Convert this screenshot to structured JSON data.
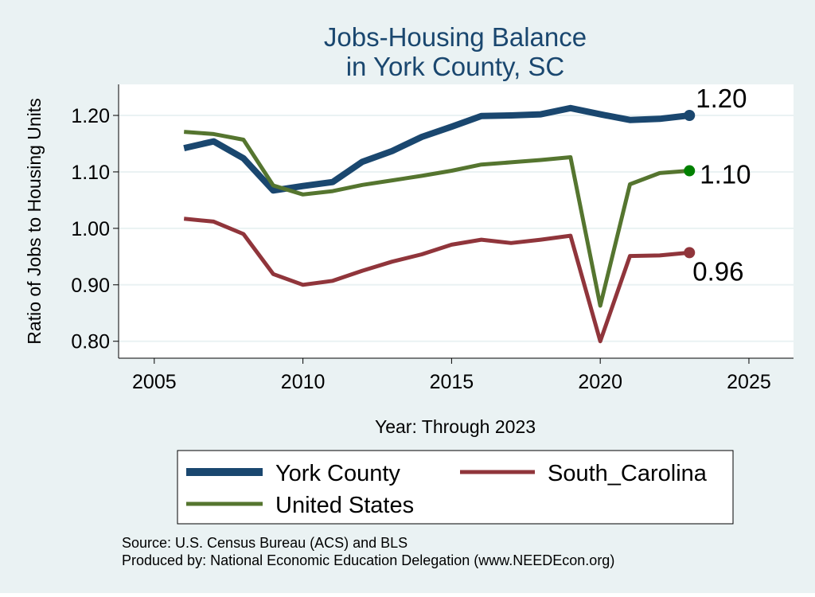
{
  "chart_data": {
    "type": "line",
    "title_lines": [
      "Jobs-Housing Balance",
      "in York County, SC"
    ],
    "xlabel": "Year: Through 2023",
    "ylabel": "Ratio of Jobs to Housing Units",
    "xlim": [
      2003.8,
      2026.5
    ],
    "ylim": [
      0.77,
      1.255
    ],
    "x_ticks": [
      2005,
      2010,
      2015,
      2020,
      2025
    ],
    "y_ticks": [
      0.8,
      0.9,
      1.0,
      1.1,
      1.2
    ],
    "y_tick_labels": [
      "0.80",
      "0.90",
      "1.00",
      "1.10",
      "1.20"
    ],
    "grid": true,
    "legend": "bottom",
    "x": [
      2006,
      2007,
      2008,
      2009,
      2010,
      2011,
      2012,
      2013,
      2014,
      2015,
      2016,
      2017,
      2018,
      2019,
      2020,
      2021,
      2022,
      2023
    ],
    "series": [
      {
        "name": "York County",
        "color": "#1a476f",
        "values": [
          1.142,
          1.154,
          1.124,
          1.067,
          1.075,
          1.082,
          1.118,
          1.137,
          1.162,
          1.18,
          1.199,
          1.2,
          1.202,
          1.213,
          1.202,
          1.192,
          1.194,
          1.2
        ],
        "end_label": "1.20",
        "end_marker_color": "#1a476f"
      },
      {
        "name": "South_Carolina",
        "color": "#90353b",
        "values": [
          1.017,
          1.012,
          0.99,
          0.919,
          0.9,
          0.907,
          0.925,
          0.941,
          0.954,
          0.971,
          0.98,
          0.974,
          0.98,
          0.987,
          0.8,
          0.951,
          0.952,
          0.957
        ],
        "end_label": "0.96",
        "end_marker_color": "#90353b"
      },
      {
        "name": "United States",
        "color": "#55752f",
        "values": [
          1.171,
          1.167,
          1.157,
          1.076,
          1.06,
          1.066,
          1.077,
          1.085,
          1.093,
          1.102,
          1.113,
          1.117,
          1.121,
          1.126,
          0.863,
          1.078,
          1.098,
          1.102
        ],
        "end_label": "1.10",
        "end_marker_color": "#008000"
      }
    ]
  },
  "legend": {
    "york": "York County",
    "sc": "South_Carolina",
    "us": "United States"
  },
  "notes": {
    "source": "Source: U.S. Census Bureau (ACS) and BLS",
    "produced": "Produced by: National Economic Education Delegation (www.NEEDEcon.org)"
  }
}
